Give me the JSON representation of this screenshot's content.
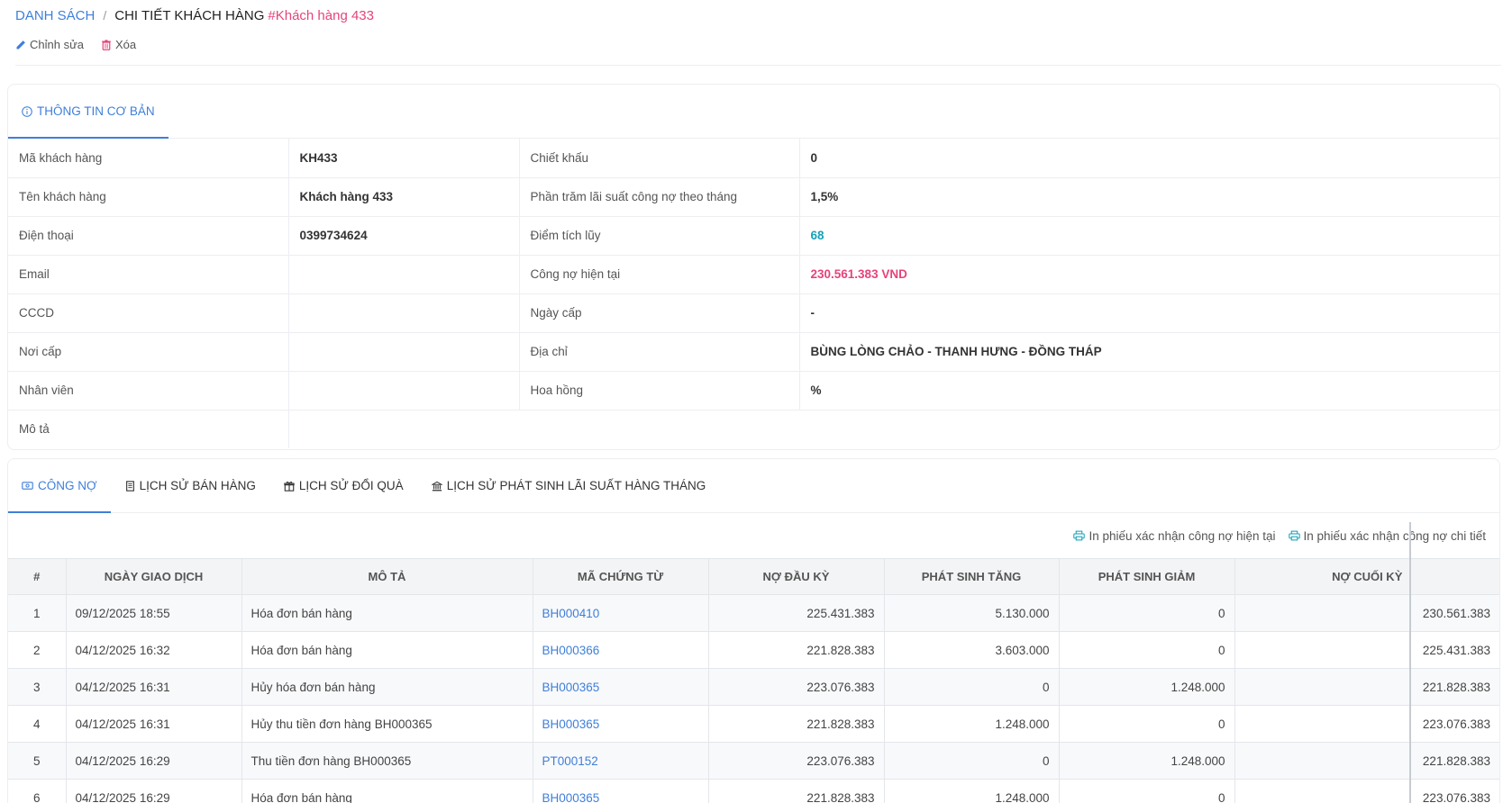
{
  "breadcrumb": {
    "root": "DANH SÁCH",
    "separator": "/",
    "current": "CHI TIẾT KHÁCH HÀNG",
    "entity": "#Khách hàng 433"
  },
  "actions": {
    "edit": "Chỉnh sửa",
    "delete": "Xóa"
  },
  "info_tab": {
    "label": "THÔNG TIN CƠ BẢN",
    "icon": "info-icon"
  },
  "info": {
    "rows": [
      {
        "l1": "Mã khách hàng",
        "v1": "KH433",
        "l2": "Chiết khấu",
        "v2": "0"
      },
      {
        "l1": "Tên khách hàng",
        "v1": "Khách hàng 433",
        "l2": "Phần trăm lãi suất công nợ theo tháng",
        "v2": "1,5%"
      },
      {
        "l1": "Điện thoại",
        "v1": "0399734624",
        "l2": "Điểm tích lũy",
        "v2": "68"
      },
      {
        "l1": "Email",
        "v1": "",
        "l2": "Công nợ hiện tại",
        "v2": "230.561.383 VND"
      },
      {
        "l1": "CCCD",
        "v1": "",
        "l2": "Ngày cấp",
        "v2": "-"
      },
      {
        "l1": "Nơi cấp",
        "v1": "",
        "l2": "Địa chỉ",
        "v2": "BÙNG LÒNG CHẢO - THANH HƯNG - ĐỒNG THÁP"
      },
      {
        "l1": "Nhân viên",
        "v1": "",
        "l2": "Hoa hồng",
        "v2": "%"
      }
    ],
    "desc_label": "Mô tả",
    "desc_value": ""
  },
  "tabs": [
    {
      "label": "CÔNG NỢ",
      "icon": "money-icon",
      "active": true
    },
    {
      "label": "LỊCH SỬ BÁN HÀNG",
      "icon": "receipt-icon",
      "active": false
    },
    {
      "label": "LỊCH SỬ ĐỔI QUÀ",
      "icon": "gift-icon",
      "active": false
    },
    {
      "label": "LỊCH SỬ PHÁT SINH LÃI SUẤT HÀNG THÁNG",
      "icon": "bank-icon",
      "active": false
    }
  ],
  "print_links": {
    "current": "In phiếu xác nhận công nợ hiện tại",
    "detail": "In phiếu xác nhận công nợ chi tiết"
  },
  "ledger": {
    "columns": [
      "#",
      "NGÀY GIAO DỊCH",
      "MÔ TẢ",
      "MÃ CHỨNG TỪ",
      "NỢ ĐẦU KỲ",
      "PHÁT SINH TĂNG",
      "PHÁT SINH GIẢM",
      "NỢ CUỐI KỲ"
    ],
    "rows": [
      [
        "1",
        "09/12/2025 18:55",
        "Hóa đơn bán hàng",
        "BH000410",
        "225.431.383",
        "5.130.000",
        "0",
        "230.561.383"
      ],
      [
        "2",
        "04/12/2025 16:32",
        "Hóa đơn bán hàng",
        "BH000366",
        "221.828.383",
        "3.603.000",
        "0",
        "225.431.383"
      ],
      [
        "3",
        "04/12/2025 16:31",
        "Hủy hóa đơn bán hàng",
        "BH000365",
        "223.076.383",
        "0",
        "1.248.000",
        "221.828.383"
      ],
      [
        "4",
        "04/12/2025 16:31",
        "Hủy thu tiền đơn hàng BH000365",
        "BH000365",
        "221.828.383",
        "1.248.000",
        "0",
        "223.076.383"
      ],
      [
        "5",
        "04/12/2025 16:29",
        "Thu tiền đơn hàng BH000365",
        "PT000152",
        "223.076.383",
        "0",
        "1.248.000",
        "221.828.383"
      ],
      [
        "6",
        "04/12/2025 16:29",
        "Hóa đơn bán hàng",
        "BH000365",
        "221.828.383",
        "1.248.000",
        "0",
        "223.076.383"
      ]
    ]
  },
  "colors": {
    "accent": "#3f7fd9",
    "pink": "#e5447a",
    "teal": "#17a2b8"
  }
}
